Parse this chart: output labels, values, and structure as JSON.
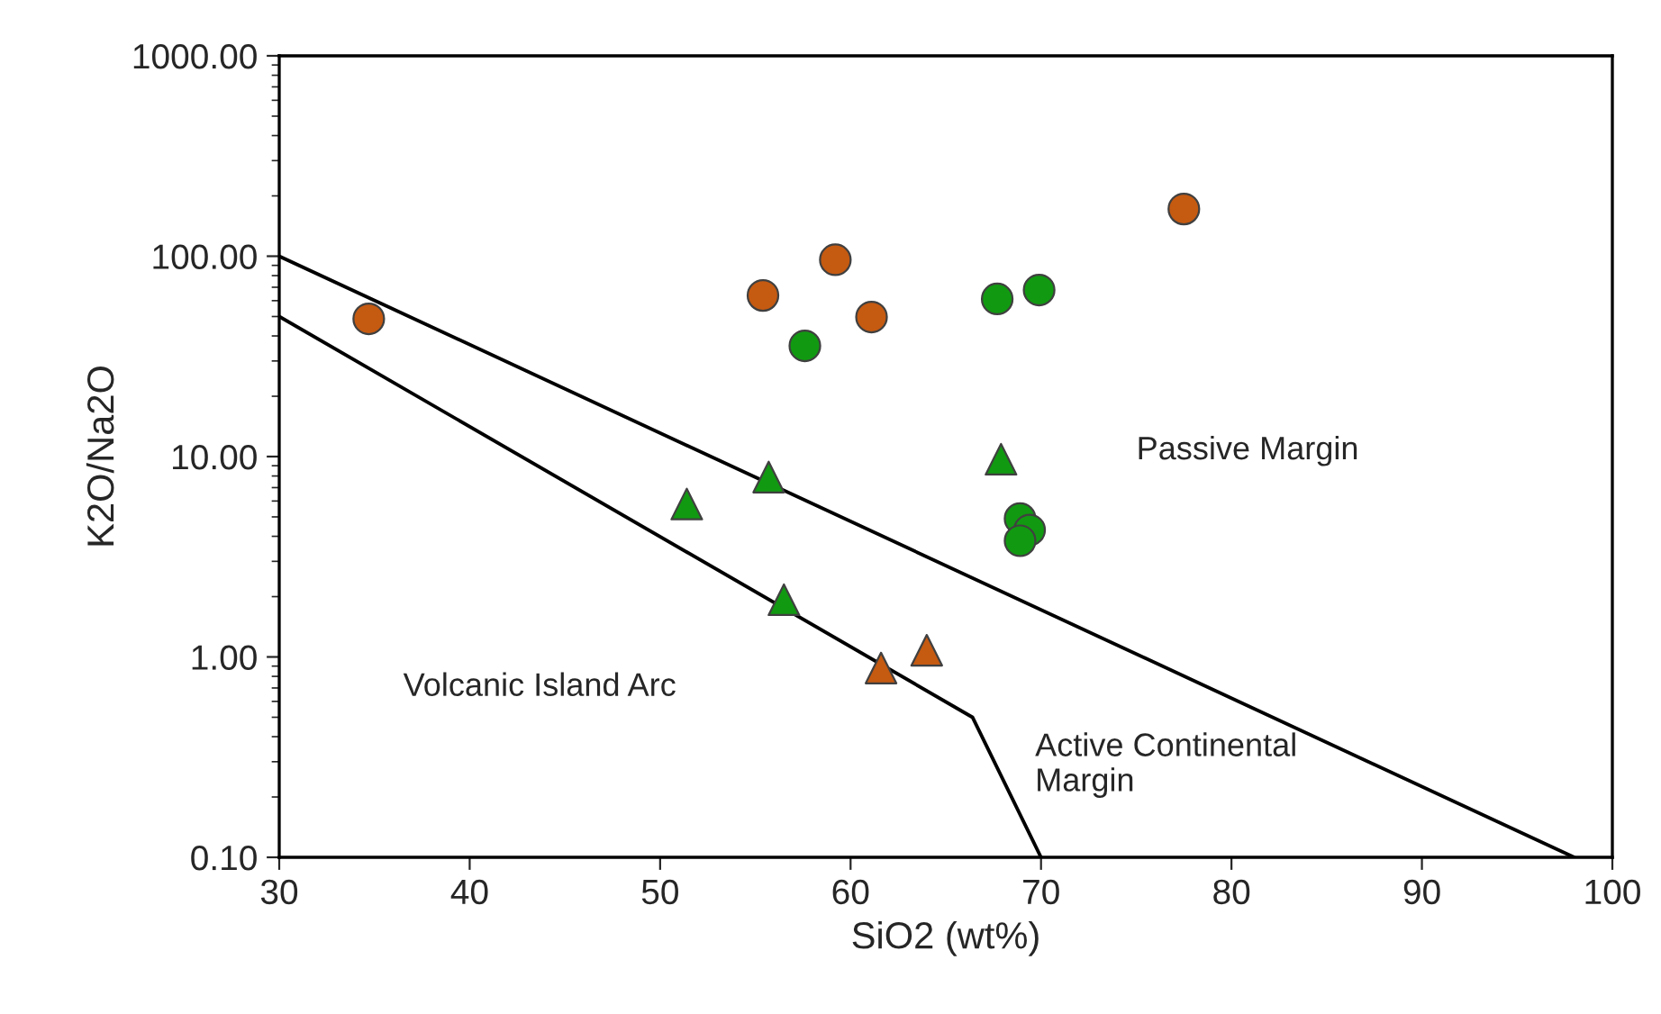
{
  "chart_data": {
    "type": "scatter",
    "xlabel": "SiO2 (wt%)",
    "ylabel": "K2O/Na2O",
    "log": "y",
    "grid": false,
    "xlim": [
      30,
      100
    ],
    "xticks": [
      30,
      40,
      50,
      60,
      70,
      80,
      90,
      100
    ],
    "ylim": [
      0.1,
      1000
    ],
    "yticks": [
      {
        "value": 0.1,
        "label": "0.10"
      },
      {
        "value": 1,
        "label": "1.00"
      },
      {
        "value": 10,
        "label": "10.00"
      },
      {
        "value": 100,
        "label": "100.00"
      },
      {
        "value": 1000,
        "label": "1000.00"
      }
    ],
    "series": [
      {
        "type": "line",
        "color": "#000000",
        "marker": "none",
        "x": [
          30,
          98
        ],
        "values": [
          100,
          0.1
        ]
      },
      {
        "type": "line",
        "color": "#000000",
        "marker": "none",
        "x": [
          30,
          66.4,
          70
        ],
        "values": [
          50,
          0.5,
          0.1
        ]
      },
      {
        "color": "#c55a11",
        "marker": "circle",
        "x": [
          34.7,
          55.4,
          59.2,
          61.1,
          77.5
        ],
        "values": [
          48.7,
          63.7,
          96,
          49.7,
          172
        ]
      },
      {
        "color": "#119a11",
        "marker": "circle",
        "x": [
          57.6,
          67.7,
          69.9,
          68.9,
          69.4,
          68.9
        ],
        "values": [
          35.7,
          61.2,
          67.8,
          4.9,
          4.3,
          3.8
        ]
      },
      {
        "color": "#119a11",
        "marker": "triangle",
        "x": [
          51.4,
          55.7,
          56.5,
          67.9
        ],
        "values": [
          5.8,
          7.9,
          1.93,
          9.7
        ]
      },
      {
        "color": "#c55a11",
        "marker": "triangle",
        "x": [
          61.6,
          64.0
        ],
        "values": [
          0.88,
          1.08
        ]
      }
    ],
    "annotations": [
      "Passive Margin",
      "Volcanic Island Arc",
      "Active Continental\nMargin"
    ]
  }
}
